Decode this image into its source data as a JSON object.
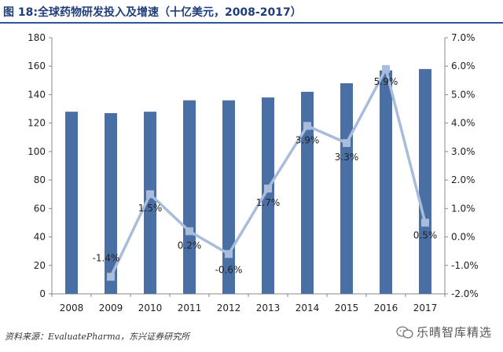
{
  "header": {
    "title": "图 18:全球药物研发投入及增速（十亿美元，2008-2017）"
  },
  "chart_data": {
    "type": "bar+line",
    "categories": [
      "2008",
      "2009",
      "2010",
      "2011",
      "2012",
      "2013",
      "2014",
      "2015",
      "2016",
      "2017"
    ],
    "series": [
      {
        "name": "全球药物研发投入（十亿美元）",
        "type": "bar",
        "axis": "left",
        "values": [
          128,
          127,
          128,
          136,
          136,
          138,
          142,
          148,
          157,
          158
        ]
      },
      {
        "name": "增速",
        "type": "line",
        "axis": "right",
        "values": [
          null,
          -1.4,
          1.5,
          0.2,
          -0.6,
          1.7,
          3.9,
          3.3,
          5.9,
          0.5
        ],
        "labels": [
          "",
          "-1.4%",
          "1.5%",
          "0.2%",
          "-0.6%",
          "1.7%",
          "3.9%",
          "3.3%",
          "5.9%",
          "0.5%"
        ]
      }
    ],
    "y_left": {
      "min": 0,
      "max": 180,
      "step": 20,
      "ticks": [
        "0",
        "20",
        "40",
        "60",
        "80",
        "100",
        "120",
        "140",
        "160",
        "180"
      ]
    },
    "y_right": {
      "min": -2.0,
      "max": 7.0,
      "step": 1.0,
      "ticks": [
        "-2.0%",
        "-1.0%",
        "0.0%",
        "1.0%",
        "2.0%",
        "3.0%",
        "4.0%",
        "5.0%",
        "6.0%",
        "7.0%"
      ]
    },
    "colors": {
      "bar": "#4a6fa5",
      "line": "#a9bcdc",
      "marker": "#a9bcdc",
      "axis": "#888888",
      "title": "#1f3e7a"
    },
    "grid": false,
    "legend": "none"
  },
  "footer": {
    "source": "资料来源：EvaluatePharma，东兴证券研究所",
    "watermark": "乐晴智库精选",
    "watermark_icon": "wechat-icon"
  }
}
